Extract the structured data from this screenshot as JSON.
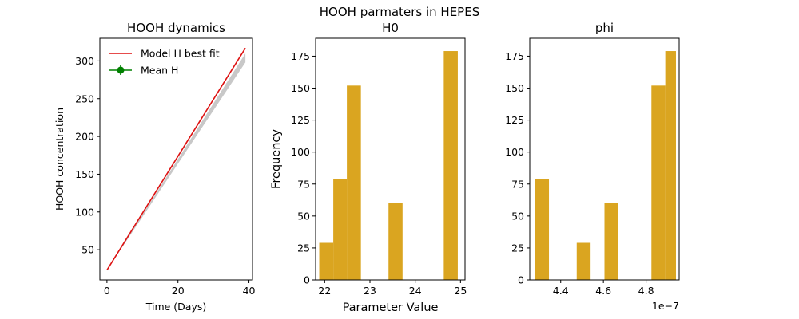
{
  "figure": {
    "suptitle": "HOOH parmaters in HEPES"
  },
  "colors": {
    "hist_bar": "#DAA520",
    "fit_line": "#DD1111",
    "mean_marker": "#008000",
    "model_runs": "#C8C8C8"
  },
  "chart_data": [
    {
      "type": "line",
      "title": "HOOH dynamics",
      "xlabel": "Time (Days)",
      "ylabel": "HOOH concentration",
      "xlim": [
        -2,
        41
      ],
      "ylim": [
        10,
        330
      ],
      "xticks": [
        0,
        20,
        40
      ],
      "yticks": [
        50,
        100,
        150,
        200,
        250,
        300
      ],
      "legend_position": "top-left",
      "series": [
        {
          "name": " Model H best fit",
          "style": "line",
          "color": "#DD1111",
          "x": [
            0,
            39
          ],
          "y": [
            23,
            317
          ]
        },
        {
          "name": "Mean H",
          "style": "errorbar-marker",
          "color": "#008000",
          "x": [],
          "y": []
        }
      ],
      "ensemble_band": {
        "x": [
          0,
          39
        ],
        "y_low": [
          23,
          298
        ],
        "y_high": [
          23,
          310
        ]
      }
    },
    {
      "type": "bar",
      "title": "H0",
      "xlabel": "Parameter Value",
      "ylabel": "Frequency",
      "xlim": [
        21.8,
        25.1
      ],
      "ylim": [
        0,
        189
      ],
      "xticks": [
        22,
        23,
        24,
        25
      ],
      "yticks": [
        0,
        25,
        50,
        75,
        100,
        125,
        150,
        175
      ],
      "bins": [
        {
          "x0": 21.88,
          "x1": 22.19,
          "value": 29
        },
        {
          "x0": 22.19,
          "x1": 22.49,
          "value": 79
        },
        {
          "x0": 22.49,
          "x1": 22.8,
          "value": 152
        },
        {
          "x0": 23.41,
          "x1": 23.72,
          "value": 60
        },
        {
          "x0": 24.63,
          "x1": 24.94,
          "value": 179
        }
      ]
    },
    {
      "type": "bar",
      "title": "phi",
      "xlabel": "",
      "ylabel": "",
      "offset_label": "1e−7",
      "xlim": [
        4.255,
        4.955
      ],
      "ylim": [
        0,
        189
      ],
      "xticks": [
        4.4,
        4.6,
        4.8
      ],
      "yticks": [
        0,
        25,
        50,
        75,
        100,
        125,
        150,
        175
      ],
      "bins": [
        {
          "x0": 4.28,
          "x1": 4.345,
          "value": 79
        },
        {
          "x0": 4.475,
          "x1": 4.54,
          "value": 29
        },
        {
          "x0": 4.605,
          "x1": 4.67,
          "value": 60
        },
        {
          "x0": 4.825,
          "x1": 4.89,
          "value": 152
        },
        {
          "x0": 4.89,
          "x1": 4.94,
          "value": 179
        }
      ]
    }
  ]
}
